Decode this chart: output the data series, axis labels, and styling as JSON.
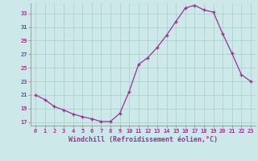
{
  "x": [
    0,
    1,
    2,
    3,
    4,
    5,
    6,
    7,
    8,
    9,
    10,
    11,
    12,
    13,
    14,
    15,
    16,
    17,
    18,
    19,
    20,
    21,
    22,
    23
  ],
  "y": [
    21.0,
    20.3,
    19.3,
    18.8,
    18.2,
    17.8,
    17.5,
    17.1,
    17.1,
    18.3,
    21.5,
    25.5,
    26.5,
    28.0,
    29.8,
    31.8,
    33.8,
    34.2,
    33.5,
    33.2,
    30.0,
    27.1,
    24.0,
    23.0
  ],
  "xlabel": "Windchill (Refroidissement éolien,°C)",
  "ylim_min": 16.5,
  "ylim_max": 34.5,
  "xlim_min": -0.5,
  "xlim_max": 23.5,
  "yticks": [
    17,
    19,
    21,
    23,
    25,
    27,
    29,
    31,
    33
  ],
  "xticks": [
    0,
    1,
    2,
    3,
    4,
    5,
    6,
    7,
    8,
    9,
    10,
    11,
    12,
    13,
    14,
    15,
    16,
    17,
    18,
    19,
    20,
    21,
    22,
    23
  ],
  "line_color": "#993399",
  "marker": "+",
  "bg_color": "#cce8e8",
  "grid_color": "#aacccc",
  "font_color": "#993399"
}
